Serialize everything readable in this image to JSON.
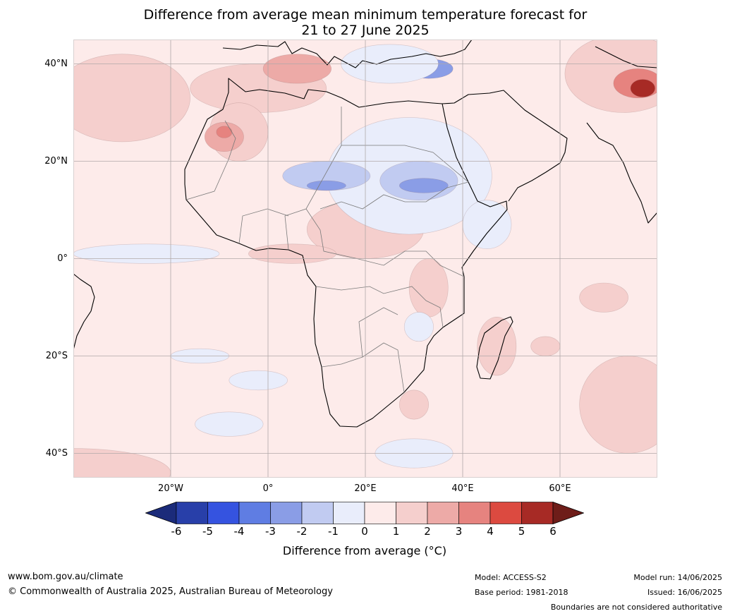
{
  "title": {
    "line1": "Difference from average mean minimum temperature forecast for",
    "line2": "21 to 27 June 2025"
  },
  "map": {
    "lon_range": [
      -40,
      80
    ],
    "lat_range": [
      -45,
      45
    ],
    "gridlines": true,
    "lat_labels": [
      {
        "value": 40,
        "label": "40°N"
      },
      {
        "value": 20,
        "label": "20°N"
      },
      {
        "value": 0,
        "label": "0°"
      },
      {
        "value": -20,
        "label": "20°S"
      },
      {
        "value": -40,
        "label": "40°S"
      }
    ],
    "lon_labels": [
      {
        "value": -20,
        "label": "20°W"
      },
      {
        "value": 0,
        "label": "0°"
      },
      {
        "value": 20,
        "label": "20°E"
      },
      {
        "value": 40,
        "label": "40°E"
      },
      {
        "value": 60,
        "label": "60°E"
      }
    ],
    "background_anomaly": 0.5,
    "anomaly_regions": [
      {
        "lon": -30,
        "lat": 33,
        "rlon": 14,
        "rlat": 9,
        "value": 1.5
      },
      {
        "lon": -2,
        "lat": 35,
        "rlon": 14,
        "rlat": 5,
        "value": 1.5
      },
      {
        "lon": 6,
        "lat": 39,
        "rlon": 7,
        "rlat": 3,
        "value": 2.5
      },
      {
        "lon": -6,
        "lat": 26,
        "rlon": 6,
        "rlat": 6,
        "value": 1.5
      },
      {
        "lon": -9,
        "lat": 25,
        "rlon": 4,
        "rlat": 3,
        "value": 2.5
      },
      {
        "lon": -9,
        "lat": 26,
        "rlon": 1.6,
        "rlat": 1.2,
        "value": 3.5
      },
      {
        "lon": 20,
        "lat": 6,
        "rlon": 12,
        "rlat": 6,
        "value": 1.5
      },
      {
        "lon": 5,
        "lat": 1,
        "rlon": 9,
        "rlat": 2,
        "value": 1.5
      },
      {
        "lon": 33,
        "lat": -6,
        "rlon": 4,
        "rlat": 6,
        "value": 1.5
      },
      {
        "lon": 47,
        "lat": -18,
        "rlon": 4,
        "rlat": 6,
        "value": 1.5
      },
      {
        "lon": 57,
        "lat": -18,
        "rlon": 3,
        "rlat": 2,
        "value": 1.5
      },
      {
        "lon": 69,
        "lat": -8,
        "rlon": 5,
        "rlat": 3,
        "value": 1.5
      },
      {
        "lon": 74,
        "lat": -30,
        "rlon": 10,
        "rlat": 10,
        "value": 1.5
      },
      {
        "lon": 73,
        "lat": 38,
        "rlon": 12,
        "rlat": 8,
        "value": 1.5
      },
      {
        "lon": 76,
        "lat": 36,
        "rlon": 5,
        "rlat": 3,
        "value": 3.5
      },
      {
        "lon": 77,
        "lat": 35,
        "rlon": 2.5,
        "rlat": 1.8,
        "value": 5.5
      },
      {
        "lon": -40,
        "lat": -44,
        "rlon": 20,
        "rlat": 5,
        "value": 1.5
      },
      {
        "lon": 30,
        "lat": -30,
        "rlon": 3,
        "rlat": 3,
        "value": 1.5
      },
      {
        "lon": 29,
        "lat": 17,
        "rlon": 17,
        "rlat": 12,
        "value": -0.5
      },
      {
        "lon": 12,
        "lat": 17,
        "rlon": 9,
        "rlat": 3,
        "value": -1.5
      },
      {
        "lon": 12,
        "lat": 15,
        "rlon": 4,
        "rlat": 1,
        "value": -2.5
      },
      {
        "lon": 31,
        "lat": 16,
        "rlon": 8,
        "rlat": 4,
        "value": -1.5
      },
      {
        "lon": 32,
        "lat": 15,
        "rlon": 5,
        "rlat": 1.5,
        "value": -2.5
      },
      {
        "lon": 33,
        "lat": 39,
        "rlon": 5,
        "rlat": 2,
        "value": -2.5
      },
      {
        "lon": 25,
        "lat": 40,
        "rlon": 10,
        "rlat": 4,
        "value": -0.5
      },
      {
        "lon": -25,
        "lat": 1,
        "rlon": 15,
        "rlat": 2,
        "value": -0.5
      },
      {
        "lon": -14,
        "lat": -20,
        "rlon": 6,
        "rlat": 1.5,
        "value": -0.5
      },
      {
        "lon": -2,
        "lat": -25,
        "rlon": 6,
        "rlat": 2,
        "value": -0.5
      },
      {
        "lon": -8,
        "lat": -34,
        "rlon": 7,
        "rlat": 2.5,
        "value": -0.5
      },
      {
        "lon": 30,
        "lat": -40,
        "rlon": 8,
        "rlat": 3,
        "value": -0.5
      },
      {
        "lon": 31,
        "lat": -14,
        "rlon": 3,
        "rlat": 3,
        "value": -0.5
      },
      {
        "lon": 45,
        "lat": 7,
        "rlon": 5,
        "rlat": 5,
        "value": -0.5
      }
    ],
    "colors": {
      "land_border": "#000000",
      "country_border": "#7a7a7a",
      "gridline": "#b0a8a8"
    }
  },
  "colorbar": {
    "ticks": [
      "-6",
      "-5",
      "-4",
      "-3",
      "-2",
      "-1",
      "0",
      "1",
      "2",
      "3",
      "4",
      "5",
      "6"
    ],
    "colors": [
      "#283fa9",
      "#3553e0",
      "#5f7de3",
      "#8a9de6",
      "#c1cbf1",
      "#e9edfb",
      "#fdebea",
      "#f5cfcd",
      "#edaaa7",
      "#e6837f",
      "#dc4a40",
      "#a72a25"
    ],
    "under_color": "#1b2b7a",
    "over_color": "#6e1d19",
    "label": "Difference from average (°C)"
  },
  "footer": {
    "website": "www.bom.gov.au/climate",
    "copyright": "© Commonwealth of Australia 2025, Australian Bureau of Meteorology",
    "model": "Model: ACCESS-S2",
    "base_period": "Base period: 1981-2018",
    "model_run": "Model run: 14/06/2025",
    "issued": "Issued: 16/06/2025",
    "disclaimer": "Boundaries are not considered authoritative"
  }
}
